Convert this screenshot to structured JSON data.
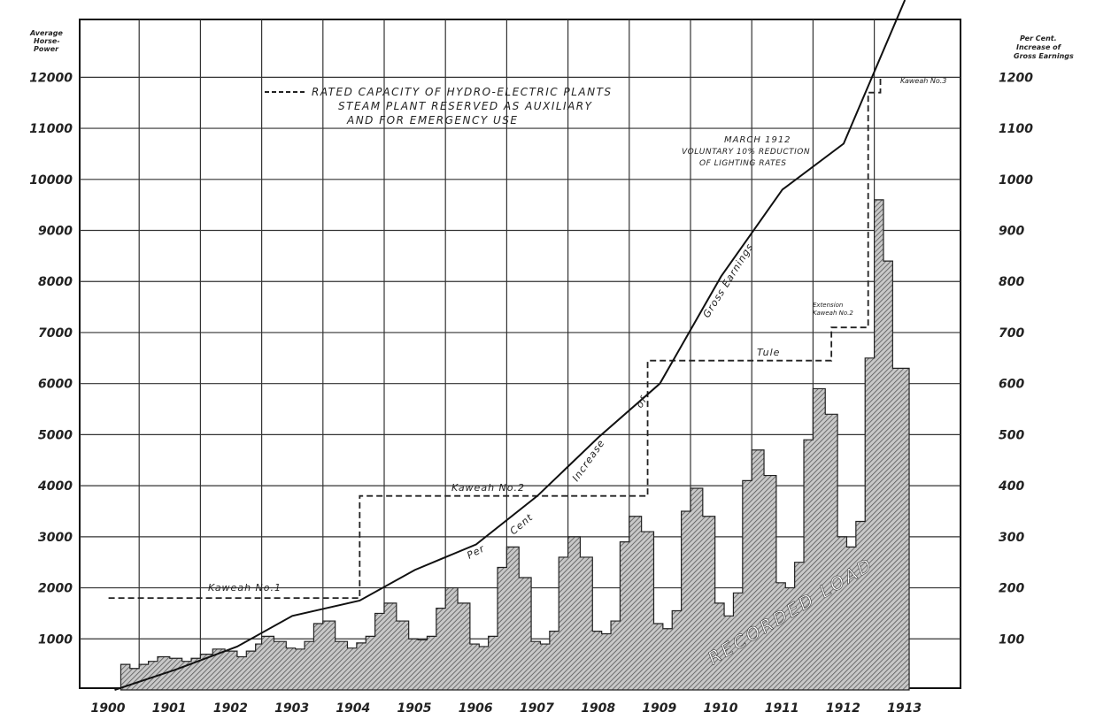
{
  "chart_data": {
    "type": "line",
    "left_axis": {
      "title_lines": [
        "Average",
        "Horse-",
        "Power"
      ],
      "ticks": [
        "1000",
        "2000",
        "3000",
        "4000",
        "5000",
        "6000",
        "7000",
        "8000",
        "9000",
        "10000",
        "11000",
        "12000"
      ],
      "ylim": [
        0,
        13000
      ]
    },
    "right_axis": {
      "title_lines": [
        "Per Cent.",
        "Increase of",
        "Gross Earnings"
      ],
      "ticks": [
        "100",
        "200",
        "300",
        "400",
        "500",
        "600",
        "700",
        "800",
        "900",
        "1000",
        "1100",
        "1200"
      ],
      "ylim": [
        0,
        1300
      ]
    },
    "x_ticks": [
      "1900",
      "1901",
      "1902",
      "1903",
      "1904",
      "1905",
      "1906",
      "1907",
      "1908",
      "1909",
      "1910",
      "1911",
      "1912",
      "1913"
    ],
    "xlim": [
      1900,
      1914
    ],
    "grid": true,
    "series": [
      {
        "name": "Per Cent Increase of Gross Earnings",
        "axis": "right",
        "style": "solid",
        "x": [
          1900.6,
          1901.6,
          1902.6,
          1903.5,
          1904.6,
          1905.5,
          1906.5,
          1907.5,
          1908.5,
          1909.5,
          1910.5,
          1911.5,
          1912.5,
          1913.5
        ],
        "values": [
          0,
          40,
          85,
          145,
          175,
          235,
          285,
          380,
          495,
          600,
          810,
          980,
          1070,
          1390
        ]
      },
      {
        "name": "Rated Capacity of Hydro-Electric Plants",
        "axis": "left",
        "style": "dashed-step",
        "x": [
          1900.5,
          1904.6,
          1904.6,
          1909.3,
          1909.3,
          1912.3,
          1912.3,
          1912.9,
          1912.9,
          1913.1,
          1913.1
        ],
        "values": [
          1800,
          1800,
          3800,
          3800,
          6450,
          6450,
          7100,
          7100,
          11700,
          11700,
          12000
        ]
      },
      {
        "name": "Recorded Load",
        "axis": "left",
        "style": "hatched-area",
        "x": [
          1900.7,
          1900.85,
          1901.0,
          1901.15,
          1901.3,
          1901.5,
          1901.7,
          1901.85,
          1902.0,
          1902.2,
          1902.4,
          1902.6,
          1902.75,
          1902.9,
          1903.0,
          1903.2,
          1903.4,
          1903.55,
          1903.7,
          1903.85,
          1904.0,
          1904.2,
          1904.4,
          1904.55,
          1904.7,
          1904.85,
          1905.0,
          1905.2,
          1905.4,
          1905.55,
          1905.7,
          1905.85,
          1906.0,
          1906.2,
          1906.4,
          1906.55,
          1906.7,
          1906.85,
          1907.0,
          1907.2,
          1907.4,
          1907.55,
          1907.7,
          1907.85,
          1908.0,
          1908.2,
          1908.4,
          1908.55,
          1908.7,
          1908.85,
          1909.0,
          1909.2,
          1909.4,
          1909.55,
          1909.7,
          1909.85,
          1910.0,
          1910.2,
          1910.4,
          1910.55,
          1910.7,
          1910.85,
          1911.0,
          1911.2,
          1911.4,
          1911.55,
          1911.7,
          1911.85,
          1912.0,
          1912.2,
          1912.4,
          1912.55,
          1912.7,
          1912.85,
          1913.0,
          1913.15,
          1913.3,
          1913.45
        ],
        "values": [
          500,
          420,
          500,
          560,
          650,
          620,
          560,
          620,
          700,
          800,
          760,
          650,
          760,
          900,
          1050,
          950,
          820,
          800,
          950,
          1300,
          1350,
          950,
          820,
          920,
          1050,
          1500,
          1700,
          1350,
          1000,
          980,
          1050,
          1600,
          2000,
          1700,
          900,
          850,
          1050,
          2400,
          2800,
          2200,
          950,
          900,
          1150,
          2600,
          3000,
          2600,
          1150,
          1100,
          1350,
          2900,
          3400,
          3100,
          1300,
          1200,
          1550,
          3500,
          3950,
          3400,
          1700,
          1450,
          1900,
          4100,
          4700,
          4200,
          2100,
          2000,
          2500,
          4900,
          5900,
          5400,
          3000,
          2800,
          3300,
          6500,
          9600,
          8400,
          6300,
          6300
        ]
      }
    ],
    "annotations": {
      "legend_line1": "RATED CAPACITY OF HYDRO-ELECTRIC PLANTS",
      "legend_line2": "STEAM PLANT RESERVED AS AUXILIARY",
      "legend_line3": "AND FOR EMERGENCY USE",
      "kaweah1": "Kaweah No.1",
      "kaweah2": "Kaweah No.2",
      "tule": "Tule",
      "extension1": "Extension",
      "extension2": "Kaweah No.2",
      "kaweah3": "Kaweah No.3",
      "march1": "MARCH 1912",
      "march2": "VOLUNTARY 10% REDUCTION",
      "march3": "OF LIGHTING RATES",
      "ge_per": "Per",
      "ge_cent": "Cent",
      "ge_increase": "Increase",
      "ge_of": "of",
      "ge_gross": "Gross Earnings",
      "recorded_load": "RECORDED LOAD"
    }
  }
}
